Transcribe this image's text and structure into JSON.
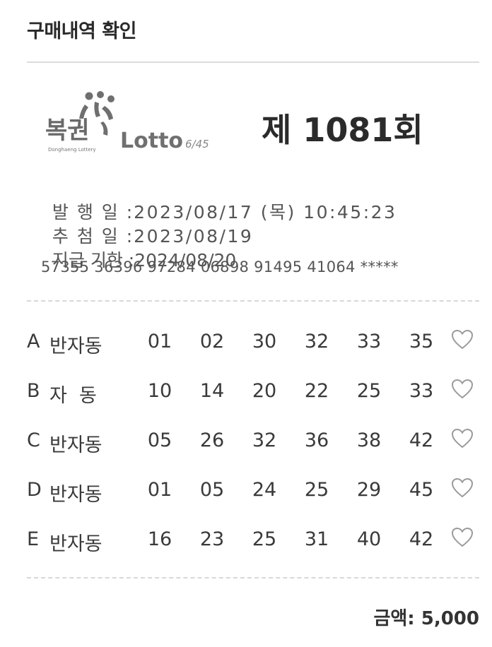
{
  "header": {
    "title": "구매내역 확인"
  },
  "logo": {
    "brand_text": "복권",
    "brand_sub": "Donghaeng Lottery",
    "lotto_text": "Lotto",
    "lotto_suffix": "6/45",
    "icon": "lottery-logo-icon"
  },
  "ticket": {
    "round": "제 1081회",
    "issue_label": "발 행 일 :",
    "issue_value": "2023/08/17 (목) 10:45:23",
    "draw_label": "추 첨 일 :",
    "draw_value": "2023/08/19",
    "deadline_label": "지급 기한 :",
    "deadline_value": "2024/08/20",
    "serial": "57355 36396 97284 06898 91495 41064 *****"
  },
  "games": [
    {
      "slot": "A",
      "mode": "반자동",
      "numbers": [
        "01",
        "02",
        "30",
        "32",
        "33",
        "35"
      ],
      "icon": "heart-outline-icon"
    },
    {
      "slot": "B",
      "mode": "자  동",
      "numbers": [
        "10",
        "14",
        "20",
        "22",
        "25",
        "33"
      ],
      "icon": "heart-outline-icon"
    },
    {
      "slot": "C",
      "mode": "반자동",
      "numbers": [
        "05",
        "26",
        "32",
        "36",
        "38",
        "42"
      ],
      "icon": "heart-outline-icon"
    },
    {
      "slot": "D",
      "mode": "반자동",
      "numbers": [
        "01",
        "05",
        "24",
        "25",
        "29",
        "45"
      ],
      "icon": "heart-outline-icon"
    },
    {
      "slot": "E",
      "mode": "반자동",
      "numbers": [
        "16",
        "23",
        "25",
        "31",
        "40",
        "42"
      ],
      "icon": "heart-outline-icon"
    }
  ],
  "footer": {
    "amount_label": "금액:",
    "amount_value": "5,000"
  },
  "colors": {
    "text_dark": "#2b2b2b",
    "text_mid": "#555555",
    "rule": "#dcdcdc",
    "heart_stroke": "#9a9a9a"
  }
}
